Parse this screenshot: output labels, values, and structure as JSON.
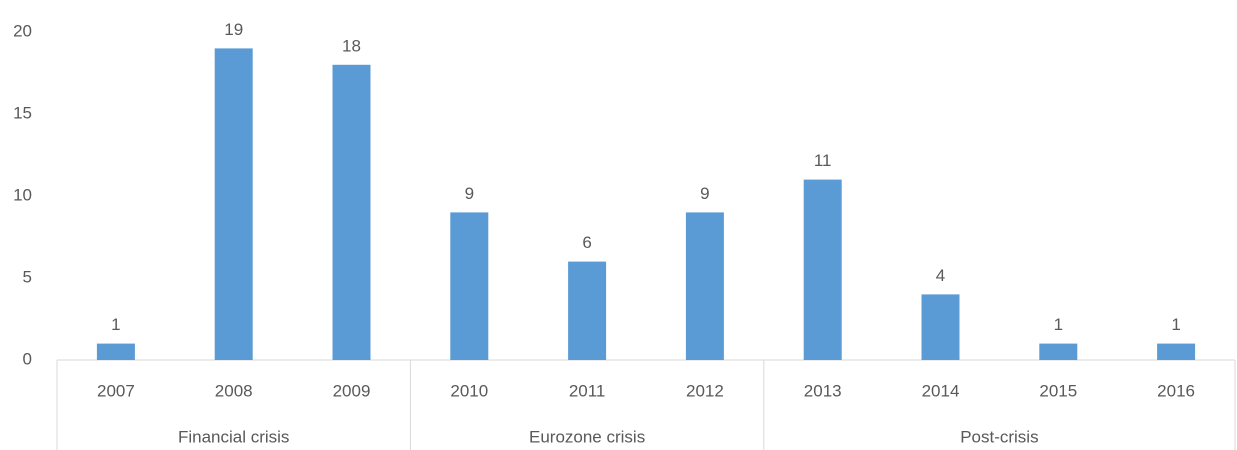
{
  "chart_data": {
    "type": "bar",
    "categories": [
      "2007",
      "2008",
      "2009",
      "2010",
      "2011",
      "2012",
      "2013",
      "2014",
      "2015",
      "2016"
    ],
    "values": [
      1,
      19,
      18,
      9,
      6,
      9,
      11,
      4,
      1,
      1
    ],
    "color": "#5b9bd5",
    "groups": [
      {
        "label": "Financial crisis",
        "count": 3
      },
      {
        "label": "Eurozone crisis",
        "count": 3
      },
      {
        "label": "Post-crisis",
        "count": 4
      }
    ],
    "ylim": [
      0,
      20
    ],
    "yticks": [
      0,
      5,
      10,
      15,
      20
    ],
    "grid": false,
    "data_labels": true
  }
}
